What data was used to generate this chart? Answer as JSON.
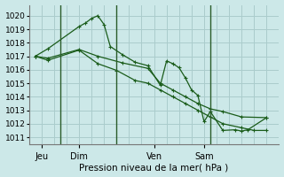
{
  "bg_color": "#cce8e8",
  "grid_color": "#aacccc",
  "line_color": "#1a5c1a",
  "xlabel": "Pression niveau de la mer( hPa )",
  "ylim": [
    1010.5,
    1020.8
  ],
  "yticks": [
    1011,
    1012,
    1013,
    1014,
    1015,
    1016,
    1017,
    1018,
    1019,
    1020
  ],
  "day_labels": [
    "Jeu",
    "Dim",
    "Ven",
    "Sam"
  ],
  "day_positions": [
    1,
    4,
    10,
    14
  ],
  "day_vlines": [
    2.5,
    7.0,
    14.5
  ],
  "xmin": 0,
  "xmax": 20,
  "series1_x": [
    0.5,
    1.5,
    4.0,
    4.5,
    5.0,
    5.5,
    6.0,
    6.5,
    7.5,
    8.5,
    9.5,
    10.5,
    11.0,
    11.5,
    12.0,
    12.5,
    13.0,
    13.5,
    14.0,
    14.5,
    15.5,
    16.5,
    17.0,
    17.5,
    19.0
  ],
  "series1_y": [
    1017.0,
    1017.55,
    1019.2,
    1019.45,
    1019.8,
    1020.0,
    1019.35,
    1017.72,
    1017.1,
    1016.55,
    1016.3,
    1014.85,
    1016.65,
    1016.45,
    1016.15,
    1015.4,
    1014.5,
    1014.1,
    1012.15,
    1012.9,
    1011.5,
    1011.55,
    1011.45,
    1011.55,
    1012.45
  ],
  "series2_x": [
    0.5,
    1.5,
    4.0,
    5.5,
    7.5,
    9.5,
    10.5,
    11.5,
    12.5,
    13.5,
    14.5,
    15.5,
    17.0,
    19.0
  ],
  "series2_y": [
    1017.0,
    1016.85,
    1017.5,
    1017.0,
    1016.5,
    1016.1,
    1015.0,
    1014.5,
    1014.0,
    1013.5,
    1013.1,
    1012.9,
    1012.5,
    1012.45
  ],
  "series3_x": [
    0.5,
    1.5,
    4.0,
    5.5,
    7.0,
    8.5,
    9.5,
    10.5,
    11.5,
    12.5,
    13.5,
    14.5,
    15.5,
    17.0,
    18.0,
    19.0
  ],
  "series3_y": [
    1017.0,
    1016.7,
    1017.45,
    1016.45,
    1015.95,
    1015.2,
    1015.0,
    1014.5,
    1014.0,
    1013.5,
    1013.0,
    1012.5,
    1012.0,
    1011.7,
    1011.5,
    1011.5
  ]
}
